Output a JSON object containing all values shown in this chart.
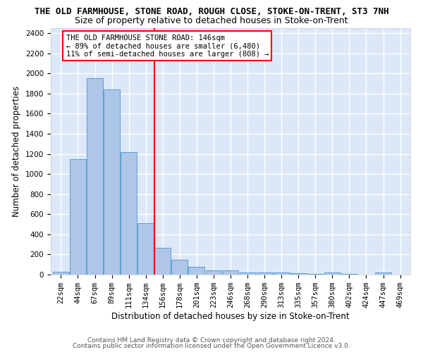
{
  "title": "THE OLD FARMHOUSE, STONE ROAD, ROUGH CLOSE, STOKE-ON-TRENT, ST3 7NH",
  "subtitle": "Size of property relative to detached houses in Stoke-on-Trent",
  "xlabel": "Distribution of detached houses by size in Stoke-on-Trent",
  "ylabel": "Number of detached properties",
  "footnote1": "Contains HM Land Registry data © Crown copyright and database right 2024.",
  "footnote2": "Contains public sector information licensed under the Open Government Licence v3.0.",
  "categories": [
    "22sqm",
    "44sqm",
    "67sqm",
    "89sqm",
    "111sqm",
    "134sqm",
    "156sqm",
    "178sqm",
    "201sqm",
    "223sqm",
    "246sqm",
    "268sqm",
    "290sqm",
    "313sqm",
    "335sqm",
    "357sqm",
    "380sqm",
    "402sqm",
    "424sqm",
    "447sqm",
    "469sqm"
  ],
  "values": [
    28,
    1150,
    1950,
    1840,
    1220,
    510,
    265,
    150,
    80,
    45,
    40,
    20,
    20,
    20,
    15,
    5,
    20,
    5,
    0,
    20,
    0
  ],
  "bar_color": "#aec6e8",
  "bar_edge_color": "#5a9fd4",
  "vline_x": 5.5,
  "vline_color": "red",
  "annotation_text": "THE OLD FARMHOUSE STONE ROAD: 146sqm\n← 89% of detached houses are smaller (6,480)\n11% of semi-detached houses are larger (808) →",
  "annotation_box_color": "white",
  "annotation_box_edge_color": "red",
  "ylim": [
    0,
    2450
  ],
  "yticks": [
    0,
    200,
    400,
    600,
    800,
    1000,
    1200,
    1400,
    1600,
    1800,
    2000,
    2200,
    2400
  ],
  "bg_color": "#dce8f8",
  "grid_color": "white",
  "title_fontsize": 9,
  "subtitle_fontsize": 9,
  "axis_label_fontsize": 8.5,
  "tick_fontsize": 7.5,
  "annotation_fontsize": 7.5,
  "footnote_fontsize": 6.5
}
